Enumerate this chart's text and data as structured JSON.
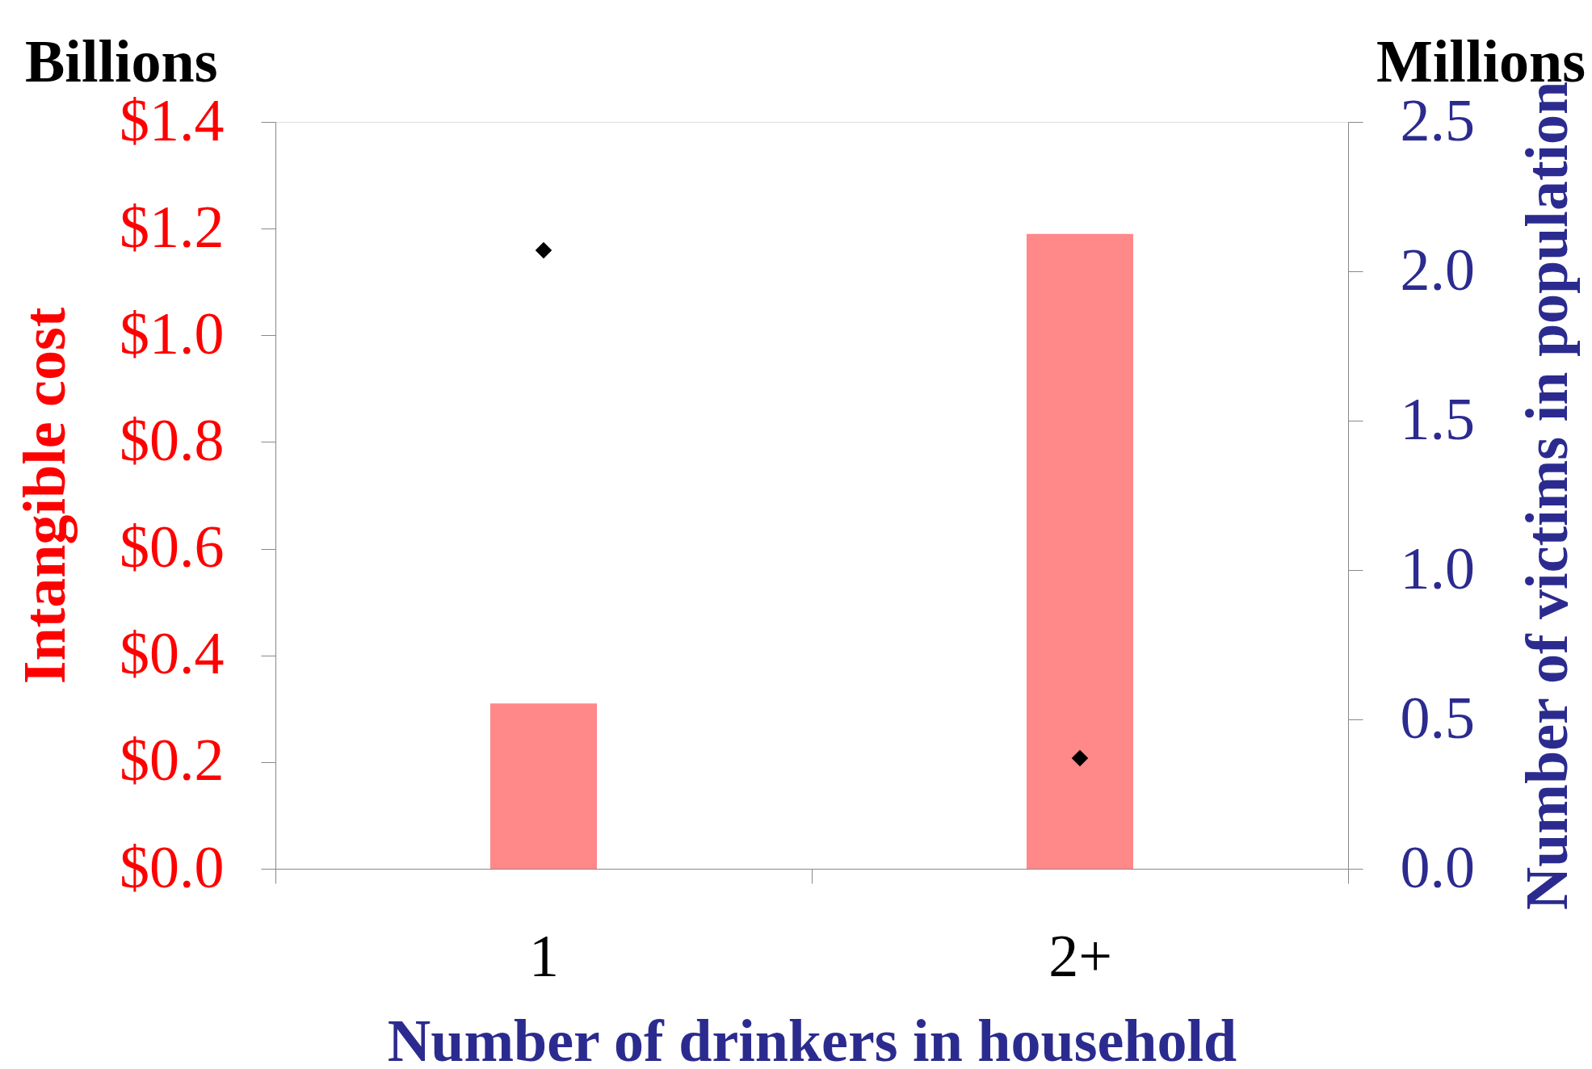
{
  "chart_data": {
    "type": "bar",
    "categories": [
      "1",
      "2+"
    ],
    "xlabel": "Number of drinkers in household",
    "ylabel": "Intangible cost",
    "y2label": "Number of victims in population",
    "series": [
      {
        "color": "#ff8888",
        "values": [
          0.31,
          1.19
        ]
      },
      {
        "type": "scatter",
        "axis": "y2",
        "color": "#000000",
        "marker": "diamond",
        "values": [
          2.07,
          0.37
        ]
      }
    ],
    "ylim": [
      0,
      1.4
    ],
    "yticks": [
      {
        "value": 0,
        "label": "$0.0"
      },
      {
        "value": 0.2,
        "label": "$0.2"
      },
      {
        "value": 0.4,
        "label": "$0.4"
      },
      {
        "value": 0.6,
        "label": "$0.6"
      },
      {
        "value": 0.8,
        "label": "$0.8"
      },
      {
        "value": 1.0,
        "label": "$1.0"
      },
      {
        "value": 1.2,
        "label": "$1.2"
      },
      {
        "value": 1.4,
        "label": "$1.4"
      }
    ],
    "y2lim": [
      0,
      2.5
    ],
    "y2ticks": [
      {
        "value": 0,
        "label": "0.0"
      },
      0.5,
      {
        "value": 1,
        "label": "1.0"
      },
      1.5,
      {
        "value": 2,
        "label": "2.0"
      },
      2.5
    ],
    "annotations": [
      "Billions",
      "Millions"
    ],
    "grid": false
  }
}
